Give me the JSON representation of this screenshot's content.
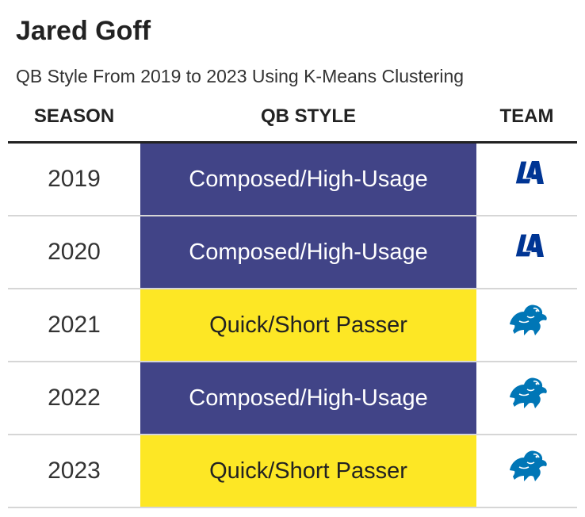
{
  "title": "Jared Goff",
  "subtitle": "QB Style From 2019 to 2023 Using K-Means Clustering",
  "columns": {
    "season": "SEASON",
    "style": "QB STYLE",
    "team": "TEAM"
  },
  "style_colors": {
    "Composed/High-Usage": {
      "bg": "#414487",
      "fg": "#ffffff"
    },
    "Quick/Short Passer": {
      "bg": "#fde725",
      "fg": "#222222"
    }
  },
  "chart_data": {
    "type": "table",
    "columns": [
      "SEASON",
      "QB STYLE",
      "TEAM"
    ],
    "rows": [
      {
        "season": "2019",
        "style": "Composed/High-Usage",
        "team_icon": "rams-logo-icon"
      },
      {
        "season": "2020",
        "style": "Composed/High-Usage",
        "team_icon": "rams-logo-icon"
      },
      {
        "season": "2021",
        "style": "Quick/Short Passer",
        "team_icon": "lions-logo-icon"
      },
      {
        "season": "2022",
        "style": "Composed/High-Usage",
        "team_icon": "lions-logo-icon"
      },
      {
        "season": "2023",
        "style": "Quick/Short Passer",
        "team_icon": "lions-logo-icon"
      }
    ]
  }
}
